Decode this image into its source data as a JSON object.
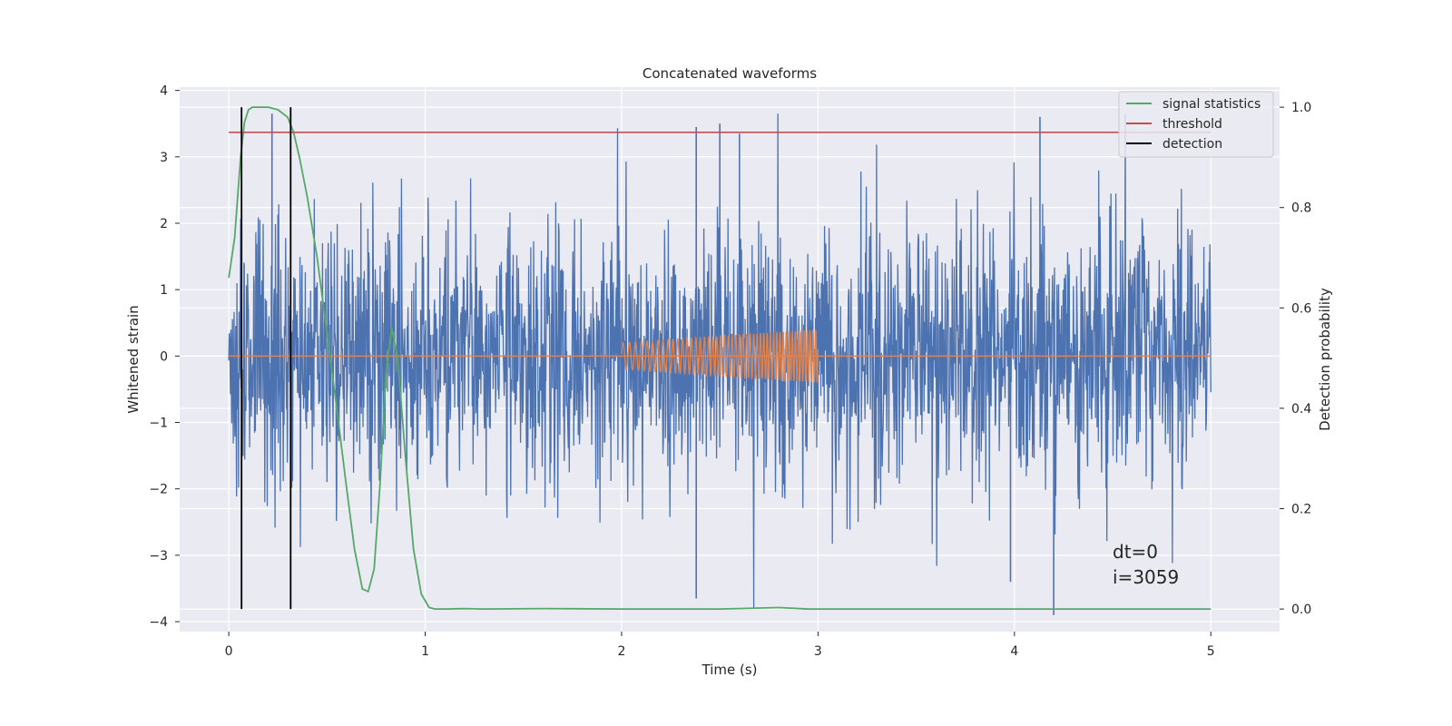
{
  "chart_data": {
    "type": "line",
    "title": "Concatenated waveforms",
    "xlabel": "Time (s)",
    "ylabel": "Whitened strain",
    "y2label": "Detection probability",
    "xlim": [
      -0.25,
      5.35
    ],
    "ylim": [
      -4.15,
      4.05
    ],
    "y2lim": [
      -0.045,
      1.04
    ],
    "xticks": [
      0,
      1,
      2,
      3,
      4,
      5
    ],
    "yticks": [
      -4,
      -3,
      -2,
      -1,
      0,
      1,
      2,
      3,
      4
    ],
    "y2ticks": [
      0.0,
      0.2,
      0.4,
      0.6,
      0.8,
      1.0
    ],
    "xtick_labels": [
      "0",
      "1",
      "2",
      "3",
      "4",
      "5"
    ],
    "ytick_labels": [
      "−4",
      "−3",
      "−2",
      "−1",
      "0",
      "1",
      "2",
      "3",
      "4"
    ],
    "y2tick_labels": [
      "0.0",
      "0.2",
      "0.4",
      "0.6",
      "0.8",
      "1.0"
    ],
    "grid": true,
    "legend_position": "top-right",
    "annotations": [
      "dt=0",
      "i=3059"
    ],
    "colors": {
      "strain": "#4c72b0",
      "template": "#dd8452",
      "signal_statistics": "#55a868",
      "threshold": "#c44e52",
      "detection": "#000000",
      "background": "#eaeaf2",
      "grid": "#ffffff"
    },
    "strain": {
      "x_range": [
        0,
        5
      ],
      "approx_envelope": [
        -3.9,
        3.65
      ],
      "typical_amplitude": 1.5,
      "description_values_peaks": [
        {
          "x": 0.22,
          "y": 3.65
        },
        {
          "x": 2.38,
          "y": 3.45
        },
        {
          "x": 2.5,
          "y": 3.5
        },
        {
          "x": 2.6,
          "y": 3.35
        },
        {
          "x": 4.13,
          "y": 3.6
        },
        {
          "x": 2.38,
          "y": -3.65
        },
        {
          "x": 4.2,
          "y": -3.9
        },
        {
          "x": 3.98,
          "y": -3.4
        }
      ]
    },
    "template_waveform": {
      "x_range": [
        2,
        3
      ],
      "amplitude_start": 0.2,
      "amplitude_end": 0.4,
      "freq_start_hz": 30,
      "freq_end_hz": 70
    },
    "series": [
      {
        "name": "signal statistics",
        "axis": "right",
        "x": [
          0.0,
          0.03,
          0.06,
          0.08,
          0.1,
          0.12,
          0.15,
          0.2,
          0.25,
          0.3,
          0.33,
          0.36,
          0.4,
          0.45,
          0.5,
          0.55,
          0.6,
          0.64,
          0.68,
          0.71,
          0.74,
          0.77,
          0.8,
          0.83,
          0.86,
          0.9,
          0.94,
          0.98,
          1.02,
          1.05,
          1.1,
          1.2,
          1.3,
          1.6,
          2.0,
          2.5,
          2.8,
          2.95,
          3.2,
          3.5,
          4.0,
          4.5,
          5.0
        ],
        "y": [
          0.66,
          0.74,
          0.9,
          0.97,
          0.995,
          1.0,
          1.0,
          1.0,
          0.995,
          0.98,
          0.95,
          0.9,
          0.82,
          0.7,
          0.55,
          0.4,
          0.24,
          0.12,
          0.04,
          0.035,
          0.08,
          0.25,
          0.47,
          0.56,
          0.5,
          0.3,
          0.12,
          0.03,
          0.003,
          0.0,
          0.0,
          0.001,
          0.0,
          0.001,
          0.0,
          0.0,
          0.003,
          0.0,
          0.0,
          0.0,
          0.0,
          0.0,
          0.0
        ]
      },
      {
        "name": "threshold",
        "axis": "right",
        "x": [
          0,
          5
        ],
        "y": [
          0.95,
          0.95
        ]
      },
      {
        "name": "detection",
        "axis": "right",
        "x": [
          0.065,
          0.315
        ],
        "y_range": [
          0.0,
          1.0
        ]
      }
    ]
  }
}
